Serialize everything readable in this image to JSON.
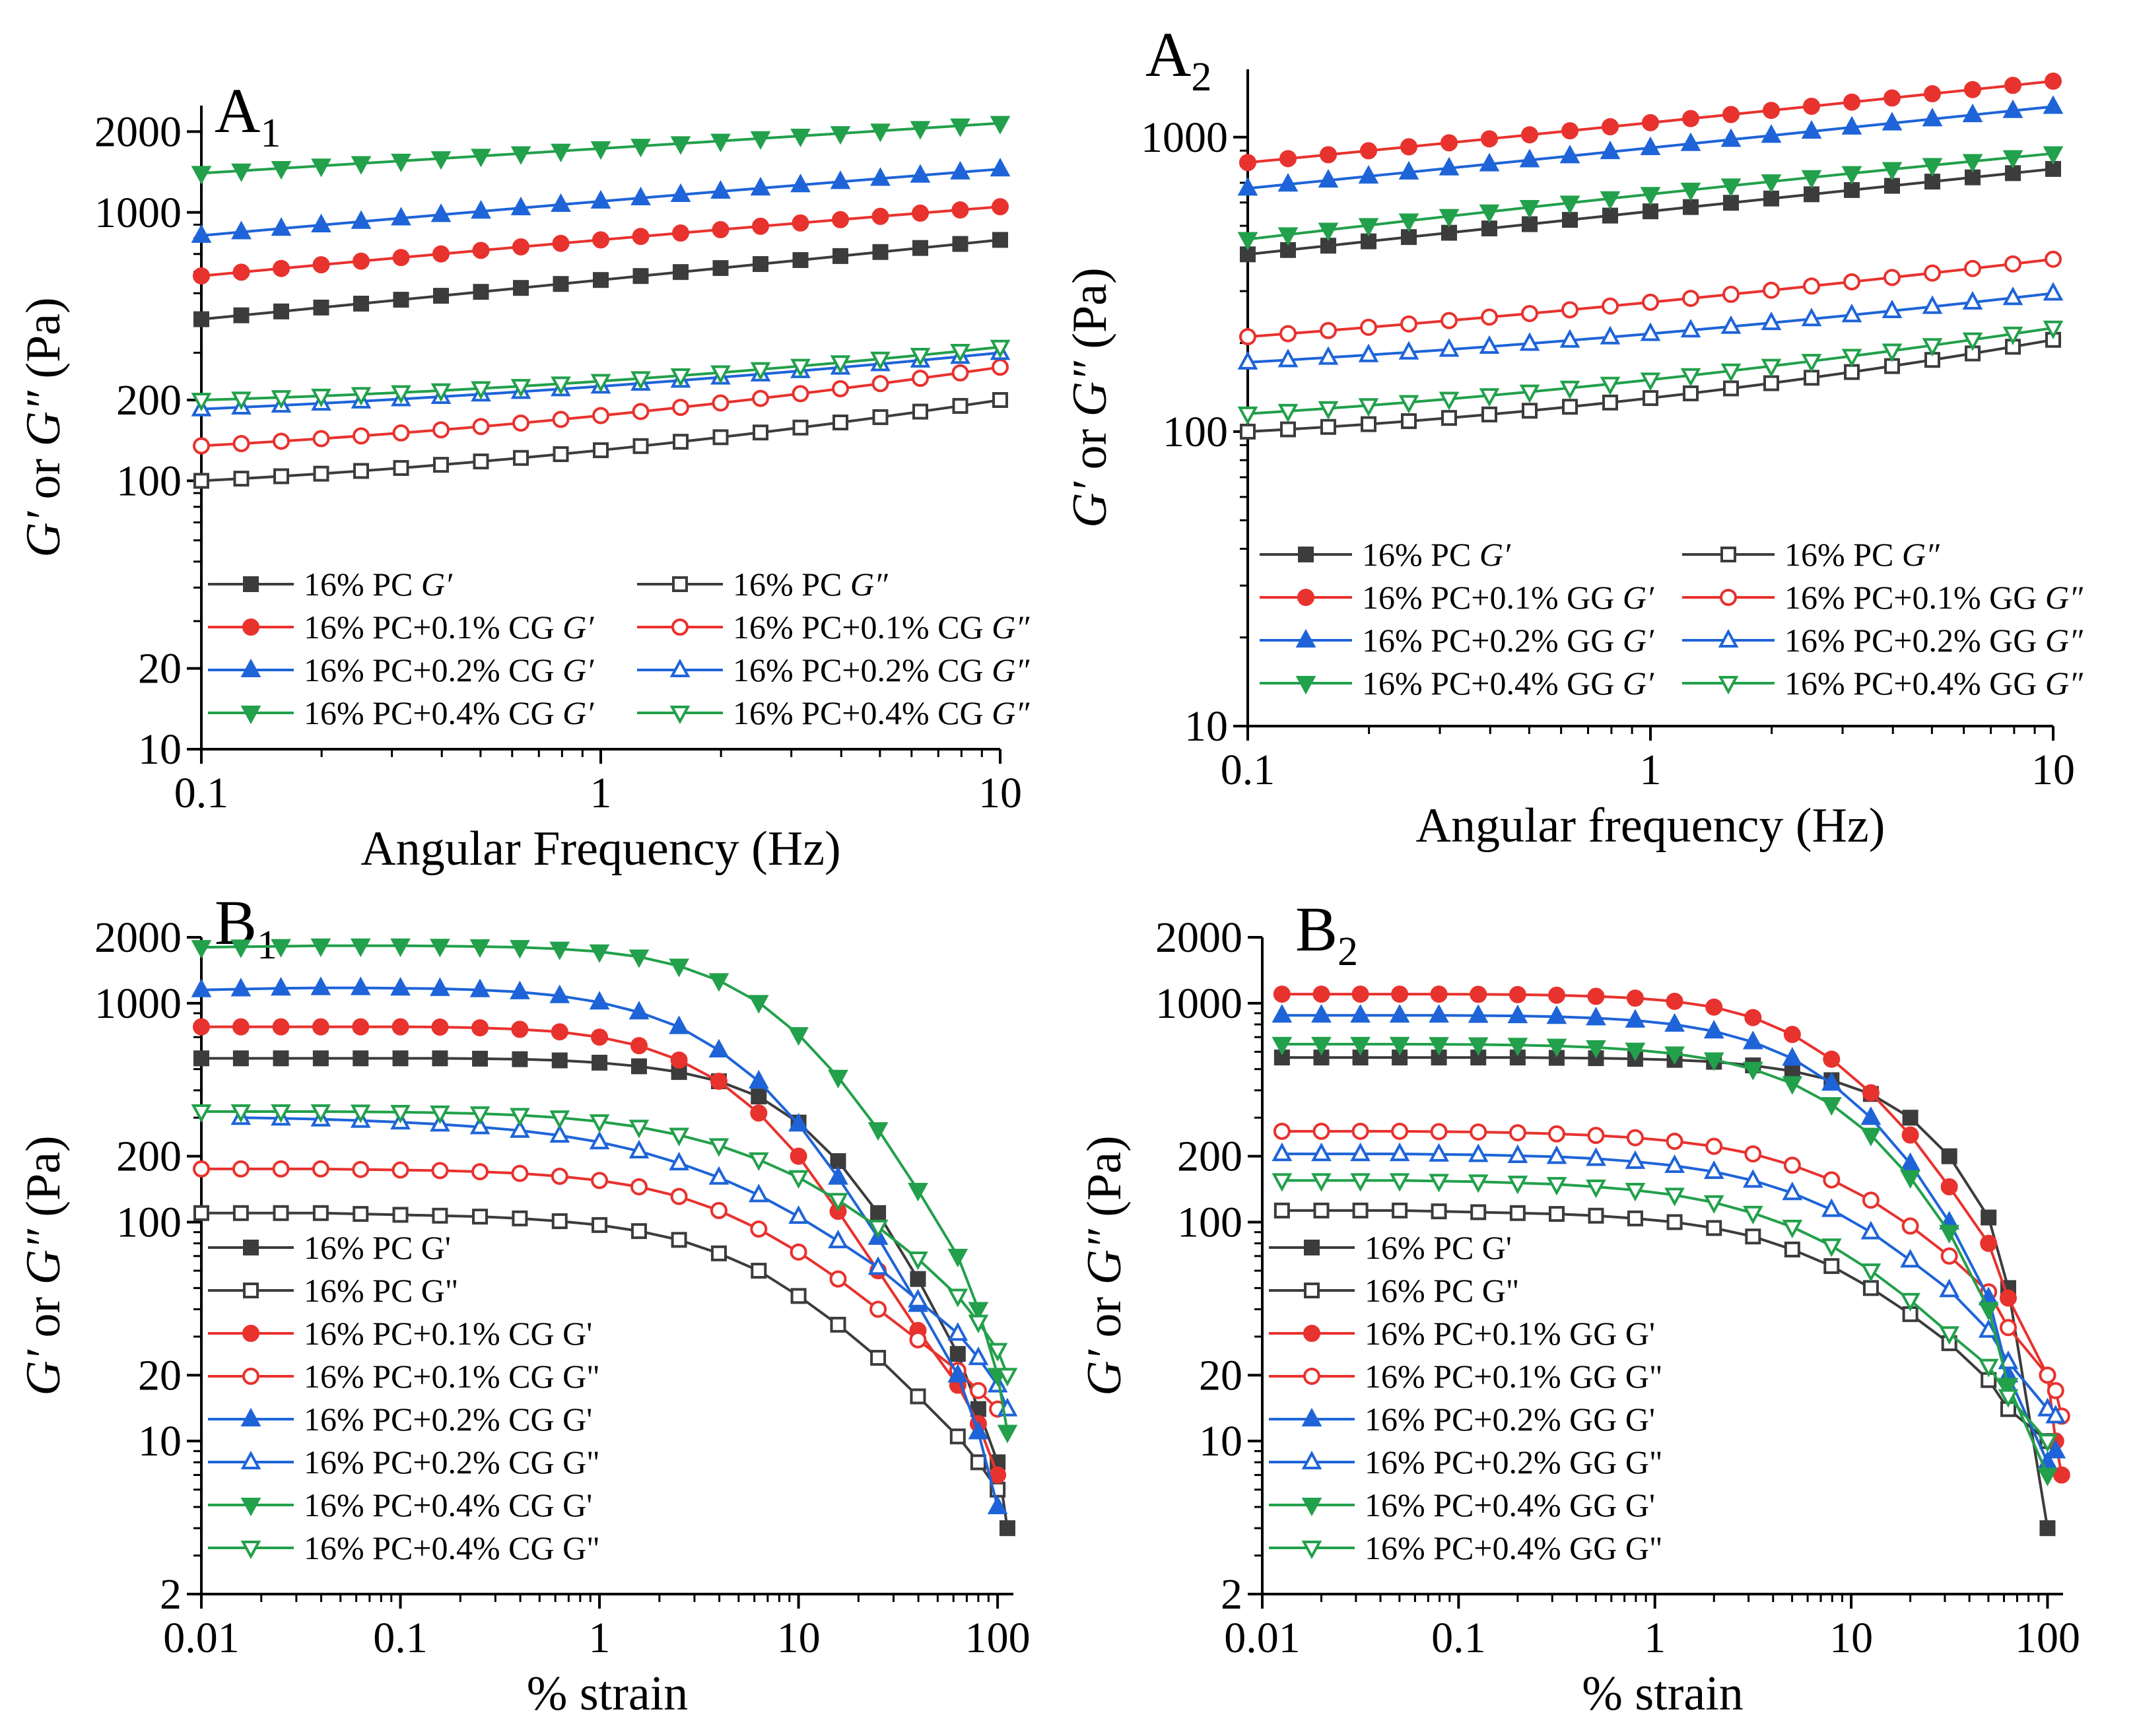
{
  "figure": {
    "description_free": true
  },
  "chart_data": [
    {
      "id": "A1",
      "type": "line",
      "panel_label": "A",
      "panel_sub": "1",
      "xscale": "log",
      "yscale": "log",
      "xlim": [
        0.1,
        10
      ],
      "ylim": [
        10,
        2500
      ],
      "xticks": [
        0.1,
        1,
        10
      ],
      "xtick_labels": [
        "0.1",
        "1",
        "10"
      ],
      "yticks": [
        10,
        20,
        100,
        200,
        1000,
        2000
      ],
      "ytick_labels": [
        "10",
        "20",
        "100",
        "200",
        "1000",
        "2000"
      ],
      "xlabel": "Angular Frequency (Hz)",
      "ylabel_parts": [
        "G′",
        " or ",
        "G″",
        " (Pa)"
      ],
      "legend_position": "bottom-left",
      "legend_columns": 2,
      "legend_order": [
        0,
        4,
        1,
        5,
        2,
        6,
        3,
        7
      ],
      "x": {
        "log_from": 0.1,
        "log_to": 10,
        "n": 21
      },
      "series": [
        {
          "label_parts": [
            "16% PC ",
            "G′"
          ],
          "color": "#3c3c3c",
          "marker": "square",
          "filled": true,
          "from": 400,
          "to": 790,
          "mid": 560
        },
        {
          "label_parts": [
            "16% PC+0.1% CG ",
            "G′"
          ],
          "color": "#e8322e",
          "marker": "circle",
          "filled": true,
          "from": 580,
          "to": 1050,
          "mid": 790
        },
        {
          "label_parts": [
            "16% PC+0.2% CG ",
            "G′"
          ],
          "color": "#1e64d8",
          "marker": "triangle-up",
          "filled": true,
          "from": 820,
          "to": 1450,
          "mid": 1100
        },
        {
          "label_parts": [
            "16% PC+0.4% CG ",
            "G′"
          ],
          "color": "#22a04b",
          "marker": "triangle-down",
          "filled": true,
          "from": 1400,
          "to": 2150,
          "mid": 1730
        },
        {
          "label_parts": [
            "16% PC ",
            "G″"
          ],
          "color": "#3c3c3c",
          "marker": "square",
          "filled": false,
          "from": 100,
          "to": 200,
          "mid": 130
        },
        {
          "label_parts": [
            "16% PC+0.1% CG ",
            "G″"
          ],
          "color": "#e8322e",
          "marker": "circle",
          "filled": false,
          "from": 135,
          "to": 265,
          "mid": 175
        },
        {
          "label_parts": [
            "16% PC+0.2% CG ",
            "G″"
          ],
          "color": "#1e64d8",
          "marker": "triangle-up",
          "filled": false,
          "from": 185,
          "to": 300,
          "mid": 225
        },
        {
          "label_parts": [
            "16% PC+0.4% CG ",
            "G″"
          ],
          "color": "#22a04b",
          "marker": "triangle-down",
          "filled": false,
          "from": 200,
          "to": 315,
          "mid": 235
        }
      ]
    },
    {
      "id": "A2",
      "type": "line",
      "panel_label": "A",
      "panel_sub": "2",
      "xscale": "log",
      "yscale": "log",
      "xlim": [
        0.1,
        10
      ],
      "ylim": [
        10,
        1700
      ],
      "xticks": [
        0.1,
        1,
        10
      ],
      "xtick_labels": [
        "0.1",
        "1",
        "10"
      ],
      "yticks": [
        10,
        100,
        1000
      ],
      "ytick_labels": [
        "10",
        "100",
        "1000"
      ],
      "xlabel": "Angular frequency (Hz)",
      "ylabel_parts": [
        "G′",
        " or ",
        "G″",
        " (Pa)"
      ],
      "legend_position": "bottom-left",
      "legend_columns": 2,
      "legend_order": [
        0,
        4,
        1,
        5,
        2,
        6,
        3,
        7
      ],
      "x": {
        "log_from": 0.1,
        "log_to": 10,
        "n": 21
      },
      "series": [
        {
          "label_parts": [
            "16% PC ",
            "G′"
          ],
          "color": "#3c3c3c",
          "marker": "square",
          "filled": true,
          "from": 400,
          "to": 780,
          "mid": 560
        },
        {
          "label_parts": [
            "16% PC+0.1% GG ",
            "G′"
          ],
          "color": "#e8322e",
          "marker": "circle",
          "filled": true,
          "from": 820,
          "to": 1550,
          "mid": 1120
        },
        {
          "label_parts": [
            "16% PC+0.2% GG ",
            "G′"
          ],
          "color": "#1e64d8",
          "marker": "triangle-up",
          "filled": true,
          "from": 670,
          "to": 1270,
          "mid": 920
        },
        {
          "label_parts": [
            "16% PC+0.4% GG ",
            "G′"
          ],
          "color": "#22a04b",
          "marker": "triangle-down",
          "filled": true,
          "from": 450,
          "to": 880,
          "mid": 640
        },
        {
          "label_parts": [
            "16% PC ",
            "G″"
          ],
          "color": "#3c3c3c",
          "marker": "square",
          "filled": false,
          "from": 100,
          "to": 205,
          "mid": 130
        },
        {
          "label_parts": [
            "16% PC+0.1% GG ",
            "G″"
          ],
          "color": "#e8322e",
          "marker": "circle",
          "filled": false,
          "from": 210,
          "to": 385,
          "mid": 275
        },
        {
          "label_parts": [
            "16% PC+0.2% GG ",
            "G″"
          ],
          "color": "#1e64d8",
          "marker": "triangle-up",
          "filled": false,
          "from": 172,
          "to": 295,
          "mid": 215
        },
        {
          "label_parts": [
            "16% PC+0.4% GG ",
            "G″"
          ],
          "color": "#22a04b",
          "marker": "triangle-down",
          "filled": false,
          "from": 115,
          "to": 225,
          "mid": 150
        }
      ]
    },
    {
      "id": "B1",
      "type": "line",
      "panel_label": "B",
      "panel_sub": "1",
      "xscale": "log",
      "yscale": "log",
      "xlim": [
        0.01,
        120
      ],
      "ylim": [
        2,
        2000
      ],
      "xticks": [
        0.01,
        0.1,
        1,
        10,
        100
      ],
      "xtick_labels": [
        "0.01",
        "0.1",
        "1",
        "10",
        "100"
      ],
      "yticks": [
        2,
        10,
        20,
        100,
        200,
        1000,
        2000
      ],
      "ytick_labels": [
        "2",
        "10",
        "20",
        "100",
        "200",
        "1000",
        "2000"
      ],
      "xlabel": "% strain",
      "ylabel_parts": [
        "G′",
        " or ",
        "G″",
        " (Pa)"
      ],
      "legend_position": "bottom-left",
      "legend_columns": 1,
      "legend_order": [
        0,
        1,
        2,
        3,
        4,
        5,
        6,
        7
      ],
      "x": [
        0.01,
        0.0158,
        0.0251,
        0.0398,
        0.0631,
        0.1,
        0.158,
        0.251,
        0.398,
        0.631,
        1,
        1.58,
        2.51,
        3.98,
        6.31,
        10,
        15.8,
        25.1,
        39.8,
        63.1,
        80,
        100,
        112
      ],
      "series": [
        {
          "label_parts": [
            "16% PC G'"
          ],
          "color": "#3c3c3c",
          "marker": "square",
          "filled": true,
          "values": [
            560,
            560,
            560,
            560,
            560,
            560,
            560,
            558,
            555,
            548,
            535,
            515,
            485,
            440,
            375,
            285,
            190,
            110,
            55,
            25,
            14,
            8,
            4
          ]
        },
        {
          "label_parts": [
            "16% PC G\""
          ],
          "color": "#3c3c3c",
          "marker": "square",
          "filled": false,
          "values": [
            110,
            110,
            110,
            110,
            109,
            108,
            107,
            106,
            104,
            101,
            97,
            91,
            83,
            72,
            60,
            46,
            34,
            24,
            16,
            10.5,
            8,
            6,
            null
          ]
        },
        {
          "label_parts": [
            "16% PC+0.1% CG G'"
          ],
          "color": "#e8322e",
          "marker": "circle",
          "filled": true,
          "values": [
            780,
            780,
            780,
            780,
            780,
            780,
            778,
            772,
            760,
            740,
            700,
            640,
            550,
            440,
            315,
            200,
            112,
            60,
            32,
            18,
            12,
            7,
            null
          ]
        },
        {
          "label_parts": [
            "16% PC+0.1% CG G\""
          ],
          "color": "#e8322e",
          "marker": "circle",
          "filled": false,
          "values": [
            175,
            175,
            175,
            175,
            174,
            173,
            172,
            170,
            167,
            162,
            155,
            145,
            131,
            113,
            93,
            73,
            55,
            40,
            29,
            21,
            17,
            14,
            null
          ]
        },
        {
          "label_parts": [
            "16% PC+0.2% CG G'"
          ],
          "color": "#1e64d8",
          "marker": "triangle-up",
          "filled": true,
          "values": [
            1150,
            1160,
            1170,
            1175,
            1175,
            1170,
            1165,
            1150,
            1125,
            1080,
            1010,
            910,
            780,
            610,
            440,
            280,
            160,
            85,
            42,
            20,
            11,
            5,
            null
          ]
        },
        {
          "label_parts": [
            "16% PC+0.2% CG G\""
          ],
          "color": "#1e64d8",
          "marker": "triangle-up",
          "filled": false,
          "values": [
            null,
            300,
            298,
            295,
            291,
            286,
            280,
            272,
            262,
            249,
            232,
            211,
            186,
            160,
            133,
            106,
            82,
            62,
            44,
            31,
            24,
            18,
            14
          ]
        },
        {
          "label_parts": [
            "16% PC+0.4% CG G'"
          ],
          "color": "#22a04b",
          "marker": "triangle-down",
          "filled": true,
          "values": [
            1800,
            1810,
            1820,
            1830,
            1830,
            1830,
            1825,
            1815,
            1800,
            1770,
            1720,
            1630,
            1480,
            1270,
            1010,
            720,
            460,
            265,
            140,
            70,
            40,
            20,
            11
          ]
        },
        {
          "label_parts": [
            "16% PC+0.4% CG G\""
          ],
          "color": "#22a04b",
          "marker": "triangle-down",
          "filled": false,
          "values": [
            320,
            320,
            320,
            320,
            319,
            318,
            316,
            313,
            308,
            300,
            288,
            272,
            250,
            224,
            193,
            160,
            126,
            95,
            68,
            46,
            35,
            26,
            20
          ]
        }
      ]
    },
    {
      "id": "B2",
      "type": "line",
      "panel_label": "B",
      "panel_sub": "2",
      "xscale": "log",
      "yscale": "log",
      "xlim": [
        0.01,
        120
      ],
      "ylim": [
        2,
        2000
      ],
      "xticks": [
        0.01,
        0.1,
        1,
        10,
        100
      ],
      "xtick_labels": [
        "0.01",
        "0.1",
        "1",
        "10",
        "100"
      ],
      "yticks": [
        2,
        10,
        20,
        100,
        200,
        1000,
        2000
      ],
      "ytick_labels": [
        "2",
        "10",
        "20",
        "100",
        "200",
        "1000",
        "2000"
      ],
      "xlabel": "% strain",
      "ylabel_parts": [
        "G′",
        " or ",
        "G″",
        " (Pa)"
      ],
      "legend_position": "bottom-left",
      "legend_columns": 1,
      "legend_order": [
        0,
        1,
        2,
        3,
        4,
        5,
        6,
        7
      ],
      "x": [
        0.0126,
        0.02,
        0.0316,
        0.0501,
        0.0794,
        0.126,
        0.2,
        0.316,
        0.501,
        0.794,
        1.26,
        2,
        3.16,
        5.01,
        7.94,
        12.6,
        20,
        31.6,
        50.1,
        63.1,
        100,
        110,
        118
      ],
      "series": [
        {
          "label_parts": [
            "16% PC G'"
          ],
          "color": "#3c3c3c",
          "marker": "square",
          "filled": true,
          "values": [
            565,
            565,
            565,
            565,
            565,
            565,
            565,
            563,
            561,
            557,
            551,
            540,
            520,
            490,
            445,
            385,
            300,
            200,
            105,
            50,
            4,
            null,
            null
          ]
        },
        {
          "label_parts": [
            "16% PC G\""
          ],
          "color": "#3c3c3c",
          "marker": "square",
          "filled": false,
          "values": [
            113,
            113,
            113,
            113,
            112,
            111,
            110,
            109,
            107,
            104,
            100,
            94,
            86,
            75,
            63,
            50,
            38,
            28,
            19,
            14,
            10,
            null,
            null
          ]
        },
        {
          "label_parts": [
            "16% PC+0.1% GG G'"
          ],
          "color": "#e8322e",
          "marker": "circle",
          "filled": true,
          "values": [
            1100,
            1100,
            1100,
            1100,
            1100,
            1098,
            1095,
            1088,
            1075,
            1055,
            1020,
            960,
            860,
            720,
            555,
            390,
            250,
            145,
            80,
            45,
            20,
            10,
            7
          ]
        },
        {
          "label_parts": [
            "16% PC+0.1% GG G\""
          ],
          "color": "#e8322e",
          "marker": "circle",
          "filled": false,
          "values": [
            260,
            260,
            260,
            260,
            259,
            258,
            256,
            253,
            249,
            243,
            234,
            222,
            205,
            182,
            156,
            126,
            96,
            70,
            48,
            33,
            20,
            17,
            13
          ]
        },
        {
          "label_parts": [
            "16% PC+0.2% GG G'"
          ],
          "color": "#1e64d8",
          "marker": "triangle-up",
          "filled": true,
          "values": [
            880,
            880,
            880,
            880,
            880,
            878,
            875,
            868,
            855,
            835,
            800,
            745,
            665,
            560,
            430,
            300,
            185,
            100,
            45,
            20,
            8,
            9,
            null
          ]
        },
        {
          "label_parts": [
            "16% PC+0.2% GG G\""
          ],
          "color": "#1e64d8",
          "marker": "triangle-up",
          "filled": false,
          "values": [
            205,
            205,
            205,
            205,
            204,
            203,
            201,
            199,
            195,
            189,
            181,
            170,
            155,
            136,
            114,
            90,
            67,
            49,
            32,
            23,
            14,
            13,
            null
          ]
        },
        {
          "label_parts": [
            "16% PC+0.4% GG G'"
          ],
          "color": "#22a04b",
          "marker": "triangle-down",
          "filled": true,
          "values": [
            650,
            650,
            650,
            650,
            649,
            647,
            644,
            638,
            628,
            612,
            588,
            552,
            500,
            430,
            345,
            250,
            160,
            90,
            40,
            18,
            7,
            null,
            null
          ]
        },
        {
          "label_parts": [
            "16% PC+0.4% GG G\""
          ],
          "color": "#22a04b",
          "marker": "triangle-down",
          "filled": false,
          "values": [
            155,
            155,
            155,
            155,
            154,
            153,
            151,
            149,
            145,
            140,
            133,
            123,
            110,
            95,
            78,
            60,
            44,
            31,
            22,
            16,
            10,
            null,
            null
          ]
        }
      ]
    }
  ]
}
